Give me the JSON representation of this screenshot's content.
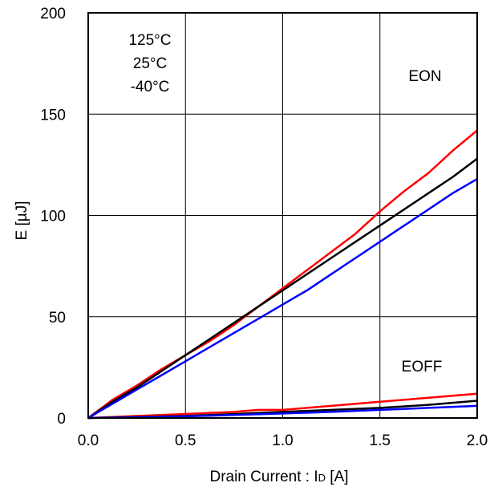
{
  "chart_data": {
    "type": "line",
    "xlabel": "Drain Current : I",
    "xlabel_sub": "D",
    "xlabel_unit": " [A]",
    "ylabel": "E [µJ]",
    "xlim": [
      0.0,
      2.0
    ],
    "ylim": [
      0,
      200
    ],
    "x_ticks": [
      "0.0",
      "0.5",
      "1.0",
      "1.5",
      "2.0"
    ],
    "y_ticks": [
      "0",
      "50",
      "100",
      "150",
      "200"
    ],
    "grid": true,
    "legend": [
      "125°C",
      "25°C",
      "-40°C"
    ],
    "legend_position": "top-left",
    "annotations": {
      "eon": "EON",
      "eoff": "EOFF"
    },
    "colors": {
      "t125": "#ff0000",
      "t25": "#000000",
      "tm40": "#0000ff"
    },
    "series": [
      {
        "name": "125°C",
        "group": "EON",
        "color": "#ff0000",
        "x": [
          0,
          0.125,
          0.25,
          0.375,
          0.5,
          0.625,
          0.75,
          0.875,
          1.0,
          1.125,
          1.25,
          1.375,
          1.5,
          1.625,
          1.75,
          1.875,
          2.0
        ],
        "y": [
          0,
          9,
          16,
          24,
          31,
          38,
          46,
          55,
          64,
          73,
          82,
          91,
          102,
          112,
          121,
          132,
          142
        ]
      },
      {
        "name": "25°C",
        "group": "EON",
        "color": "#000000",
        "x": [
          0,
          0.125,
          0.25,
          0.375,
          0.5,
          0.625,
          0.75,
          0.875,
          1.0,
          1.125,
          1.25,
          1.375,
          1.5,
          1.625,
          1.75,
          1.875,
          2.0
        ],
        "y": [
          0,
          8,
          15,
          23,
          31,
          39,
          47,
          55,
          63,
          71,
          79,
          87,
          95,
          103,
          111,
          119,
          128
        ]
      },
      {
        "name": "-40°C",
        "group": "EON",
        "color": "#0000ff",
        "x": [
          0,
          0.125,
          0.25,
          0.375,
          0.5,
          0.625,
          0.75,
          0.875,
          1.0,
          1.125,
          1.25,
          1.375,
          1.5,
          1.625,
          1.75,
          1.875,
          2.0
        ],
        "y": [
          0,
          7,
          14,
          21,
          28,
          35,
          42,
          49,
          56,
          63,
          71,
          79,
          87,
          95,
          103,
          111,
          118
        ]
      },
      {
        "name": "125°C",
        "group": "EOFF",
        "color": "#ff0000",
        "x": [
          0,
          0.25,
          0.5,
          0.75,
          0.875,
          1.0,
          1.25,
          1.5,
          1.75,
          2.0
        ],
        "y": [
          0,
          1,
          2,
          3,
          4,
          4,
          6,
          8,
          10,
          12
        ]
      },
      {
        "name": "25°C",
        "group": "EOFF",
        "color": "#000000",
        "x": [
          0,
          0.25,
          0.5,
          0.75,
          1.0,
          1.25,
          1.5,
          1.75,
          2.0
        ],
        "y": [
          0,
          0.5,
          1,
          2,
          3,
          4,
          5,
          6.5,
          8.5
        ]
      },
      {
        "name": "-40°C",
        "group": "EOFF",
        "color": "#0000ff",
        "x": [
          0,
          0.25,
          0.5,
          0.75,
          1.0,
          1.25,
          1.5,
          1.75,
          2.0
        ],
        "y": [
          0,
          0.3,
          0.8,
          1.5,
          2.2,
          3,
          4,
          5,
          6
        ]
      }
    ]
  }
}
